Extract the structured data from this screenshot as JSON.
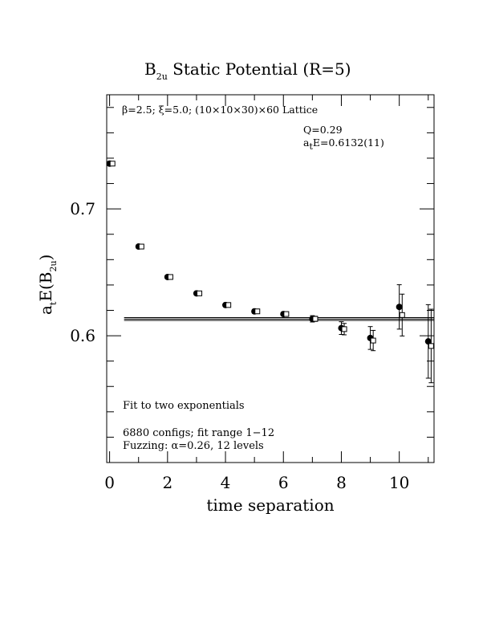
{
  "chart_data": {
    "type": "scatter",
    "title_main": "B",
    "title_sub": "2u",
    "title_rest": " Static Potential (R=5)",
    "xlabel": "time separation",
    "ylabel_a": "a",
    "ylabel_t": "t",
    "ylabel_mid": "E(B",
    "ylabel_sub": "2u",
    "ylabel_end": ")",
    "xlim": [
      -0.1,
      11.2
    ],
    "ylim": [
      0.5,
      0.79
    ],
    "x_ticks": [
      0,
      2,
      4,
      6,
      8,
      10
    ],
    "x_tick_labels": [
      "0",
      "2",
      "4",
      "6",
      "8",
      "10"
    ],
    "y_ticks": [
      0.6,
      0.7
    ],
    "y_tick_labels": [
      "0.6",
      "0.7"
    ],
    "annotations": {
      "lattice": "β=2.5; ξ=5.0; (10×10×30)×60 Lattice",
      "q": "Q=0.29",
      "energy_a": "a",
      "energy_t": "t",
      "energy_rest": "E=0.6132(11)",
      "fit": "Fit to two exponentials",
      "configs": "6880 configs; fit range 1−12",
      "fuzzing": "Fuzzing: α=0.26, 12 levels"
    },
    "fit": {
      "x_start": 0.5,
      "x_end": 11.2,
      "value": 0.6132,
      "error": 0.0011
    },
    "series": [
      {
        "marker": "filled-circle",
        "x": [
          0,
          1,
          2,
          3,
          4,
          5,
          6,
          7,
          8,
          9,
          10,
          11
        ],
        "y": [
          0.7357,
          0.6703,
          0.6463,
          0.6334,
          0.6242,
          0.6192,
          0.6171,
          0.6133,
          0.606,
          0.5982,
          0.6227,
          0.5955
        ],
        "err": [
          0.0015,
          0.0015,
          0.0015,
          0.0015,
          0.0015,
          0.0015,
          0.0015,
          0.0025,
          0.005,
          0.009,
          0.0175,
          0.029
        ]
      },
      {
        "marker": "open-square",
        "x": [
          0.1,
          1.1,
          2.1,
          3.1,
          4.1,
          5.1,
          6.1,
          7.1,
          8.1,
          9.1,
          10.1,
          11.1
        ],
        "y": [
          0.7357,
          0.6703,
          0.6463,
          0.6334,
          0.6242,
          0.6192,
          0.6171,
          0.6133,
          0.6052,
          0.5962,
          0.6163,
          0.5919
        ],
        "err": [
          0.0015,
          0.0015,
          0.0015,
          0.0015,
          0.0015,
          0.0015,
          0.0015,
          0.002,
          0.0045,
          0.008,
          0.0165,
          0.029
        ]
      }
    ]
  }
}
